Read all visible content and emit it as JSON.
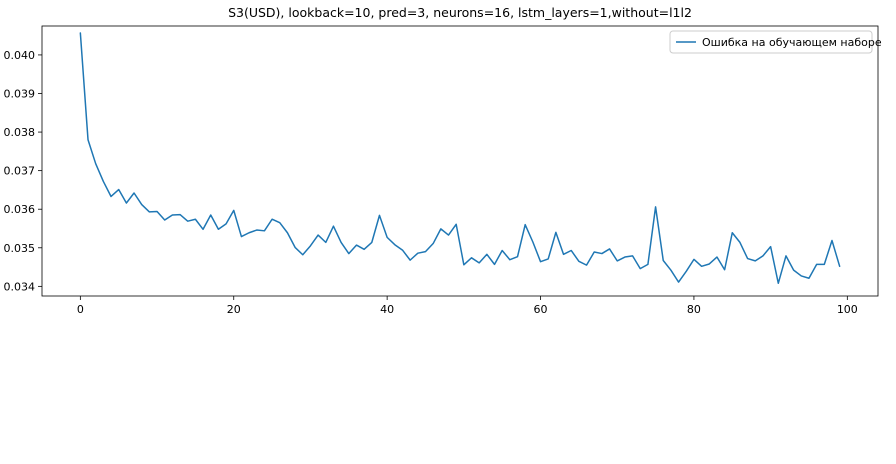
{
  "chart_data": {
    "type": "line",
    "title": "S3(USD), lookback=10, pred=3, neurons=16, lstm_layers=1,without=l1l2",
    "xlabel": "",
    "ylabel": "",
    "xlim": [
      -5,
      104
    ],
    "ylim": [
      0.03375,
      0.04075
    ],
    "xticks": [
      0,
      20,
      40,
      60,
      80,
      100
    ],
    "xtick_labels": [
      "0",
      "20",
      "40",
      "60",
      "80",
      "100"
    ],
    "yticks": [
      0.034,
      0.035,
      0.036,
      0.037,
      0.038,
      0.039,
      0.04
    ],
    "ytick_labels": [
      "0.034",
      "0.035",
      "0.036",
      "0.037",
      "0.038",
      "0.039",
      "0.040"
    ],
    "grid": false,
    "legend_position": "top-right",
    "series": [
      {
        "name": "Ошибка на обучающем наборе",
        "color": "#1f77b4",
        "x": [
          0,
          1,
          2,
          3,
          4,
          5,
          6,
          7,
          8,
          9,
          10,
          11,
          12,
          13,
          14,
          15,
          16,
          17,
          18,
          19,
          20,
          21,
          22,
          23,
          24,
          25,
          26,
          27,
          28,
          29,
          30,
          31,
          32,
          33,
          34,
          35,
          36,
          37,
          38,
          39,
          40,
          41,
          42,
          43,
          44,
          45,
          46,
          47,
          48,
          49,
          50,
          51,
          52,
          53,
          54,
          55,
          56,
          57,
          58,
          59,
          60,
          61,
          62,
          63,
          64,
          65,
          66,
          67,
          68,
          69,
          70,
          71,
          72,
          73,
          74,
          75,
          76,
          77,
          78,
          79,
          80,
          81,
          82,
          83,
          84,
          85,
          86,
          87,
          88,
          89,
          90,
          91,
          92,
          93,
          94,
          95,
          96,
          97,
          98,
          99
        ],
        "values": [
          0.04057,
          0.0378,
          0.03718,
          0.03672,
          0.03633,
          0.03651,
          0.03616,
          0.03642,
          0.03612,
          0.03593,
          0.03594,
          0.03572,
          0.03585,
          0.03586,
          0.03569,
          0.03574,
          0.03548,
          0.03585,
          0.03548,
          0.03562,
          0.03597,
          0.03529,
          0.03539,
          0.03546,
          0.03544,
          0.03574,
          0.03565,
          0.03539,
          0.03501,
          0.03482,
          0.03505,
          0.03533,
          0.03514,
          0.03556,
          0.03514,
          0.03485,
          0.03507,
          0.03496,
          0.03514,
          0.03584,
          0.03527,
          0.03508,
          0.03494,
          0.03468,
          0.03486,
          0.0349,
          0.03511,
          0.03549,
          0.03533,
          0.03561,
          0.03456,
          0.03474,
          0.03461,
          0.03483,
          0.03457,
          0.03493,
          0.03469,
          0.03477,
          0.0356,
          0.03515,
          0.03464,
          0.03471,
          0.0354,
          0.03483,
          0.03493,
          0.03465,
          0.03455,
          0.03489,
          0.03485,
          0.03497,
          0.03466,
          0.03476,
          0.03479,
          0.03446,
          0.03457,
          0.03606,
          0.03467,
          0.03442,
          0.03411,
          0.03439,
          0.0347,
          0.03452,
          0.03458,
          0.03476,
          0.03443,
          0.03539,
          0.03514,
          0.03472,
          0.03466,
          0.03479,
          0.03503,
          0.03408,
          0.03479,
          0.03442,
          0.03427,
          0.03421,
          0.03457,
          0.03457,
          0.03519,
          0.03452
        ]
      }
    ]
  }
}
